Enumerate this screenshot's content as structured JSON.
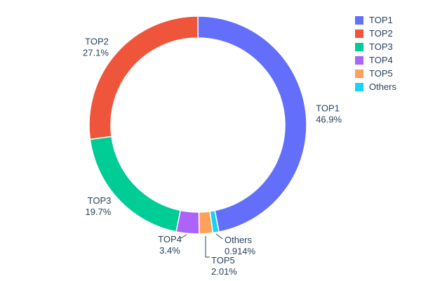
{
  "figure": {
    "background": "#ffffff",
    "text_color": "#2a3f5f"
  },
  "chart_data": {
    "type": "pie",
    "subtype": "donut",
    "hole_ratio": 0.8,
    "title": "",
    "labels": [
      "TOP1",
      "TOP2",
      "TOP3",
      "TOP4",
      "TOP5",
      "Others"
    ],
    "values": [
      46.9,
      27.1,
      19.7,
      3.4,
      2.01,
      0.914
    ],
    "value_labels": [
      "46.9%",
      "27.1%",
      "19.7%",
      "3.4%",
      "2.01%",
      "0.914%"
    ],
    "colors": [
      "#636efa",
      "#ef553b",
      "#00cc96",
      "#ab63fa",
      "#ffa15a",
      "#19d3f3"
    ],
    "clockwise_order": [
      "TOP1",
      "Others",
      "TOP5",
      "TOP4",
      "TOP3",
      "TOP2"
    ],
    "labels_position": "outside",
    "legend": {
      "position": "right",
      "entries": [
        "TOP1",
        "TOP2",
        "TOP3",
        "TOP4",
        "TOP5",
        "Others"
      ]
    }
  }
}
